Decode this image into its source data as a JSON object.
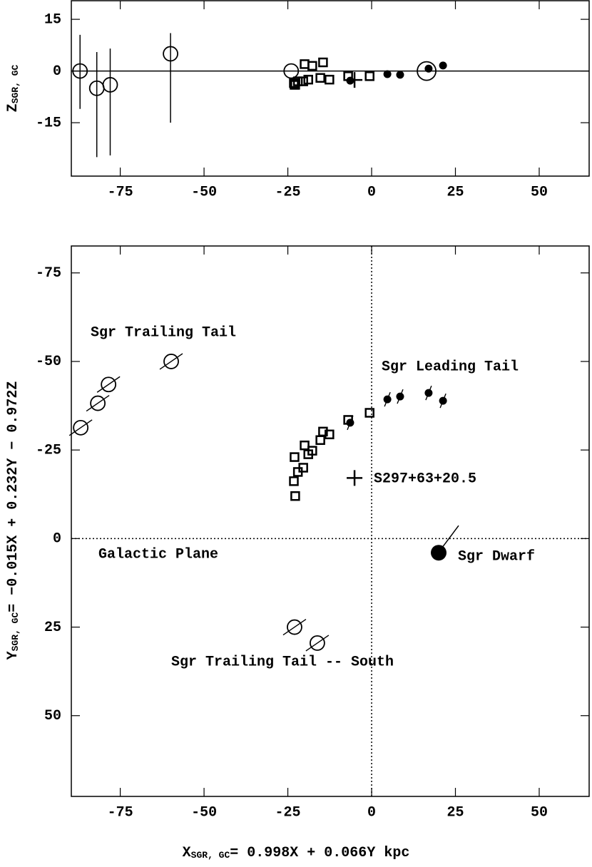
{
  "chart_data": [
    {
      "type": "scatter",
      "ylabel": {
        "main": "Z",
        "sub": "SGR, GC"
      },
      "xlim": [
        -89.6,
        64.9
      ],
      "ylim": [
        -30.5,
        20.4
      ],
      "xticks": [
        -75,
        -50,
        -25,
        0,
        25,
        50
      ],
      "yticks": [
        15,
        0,
        -15
      ],
      "zero_line": true,
      "series": [
        {
          "marker": "open-circle",
          "color": "#000000",
          "x": [
            -87,
            -82,
            -78,
            -60,
            -24
          ],
          "values": [
            0,
            -5,
            -4,
            5,
            0
          ],
          "error_low": [
            11,
            20,
            20.5,
            20,
            null
          ],
          "error_high": [
            10.5,
            10.5,
            10.5,
            6,
            null
          ]
        },
        {
          "marker": "open-square",
          "color": "#000000",
          "x": [
            -23,
            -23.2,
            -22.8,
            -22,
            -20.4,
            -20,
            -18.9,
            -17.7,
            -15.3,
            -14.5,
            -12.6,
            -7,
            -0.6
          ],
          "values": [
            -4,
            -3.5,
            -4,
            -3,
            -3,
            2,
            -2.5,
            1.5,
            -2,
            2.5,
            -2.5,
            -1.5,
            -1.5
          ]
        },
        {
          "marker": "filled-circle",
          "color": "#000000",
          "x": [
            -6.4,
            4.7,
            8.5,
            17,
            21.3
          ],
          "values": [
            -2.8,
            -0.9,
            -1.1,
            0.7,
            1.6
          ]
        },
        {
          "marker": "cross",
          "color": "#000000",
          "x": [
            -5.1
          ],
          "values": [
            -2.6
          ]
        },
        {
          "marker": "large-open-circle",
          "color": "#000000",
          "x": [
            16.4
          ],
          "values": [
            0
          ]
        }
      ]
    },
    {
      "type": "scatter",
      "xlabel": {
        "main": "X",
        "sub": "SGR, GC",
        "rest": "= 0.998X + 0.066Y kpc"
      },
      "ylabel": {
        "main": "Y",
        "sub": "SGR, GC",
        "rest": "= −0.015X + 0.232Y − 0.972Z"
      },
      "xlim": [
        -89.6,
        64.9
      ],
      "ylim": [
        72.8,
        -82.6
      ],
      "xticks": [
        -75,
        -50,
        -25,
        0,
        25,
        50
      ],
      "yticks": [
        -75,
        -50,
        -25,
        0,
        25,
        50
      ],
      "zero_lines": true,
      "direction_lines": true,
      "annotations": [
        "Sgr Trailing Tail",
        "Sgr Leading Tail",
        "S297+63+20.5",
        "Galactic Plane",
        "Sgr Dwarf",
        "Sgr Trailing Tail -- South"
      ],
      "series": [
        {
          "marker": "open-circle",
          "color": "#000000",
          "x": [
            -86.8,
            -81.7,
            -78.5,
            -59.8,
            -23,
            -16.2
          ],
          "values": [
            -31.3,
            -38.2,
            -43.5,
            -50,
            25,
            29.5
          ]
        },
        {
          "marker": "open-square",
          "color": "#000000",
          "x": [
            -23,
            -23.2,
            -22.8,
            -22,
            -20.4,
            -20,
            -18.9,
            -17.7,
            -15.3,
            -14.5,
            -12.6,
            -7,
            -0.6
          ],
          "values": [
            -23,
            -16.2,
            -12,
            -18.8,
            -20,
            -26.3,
            -23.8,
            -24.8,
            -27.8,
            -30.2,
            -29.4,
            -33.5,
            -35.5
          ]
        },
        {
          "marker": "filled-circle",
          "color": "#000000",
          "x": [
            -6.4,
            4.7,
            8.5,
            17,
            21.3
          ],
          "values": [
            -32.7,
            -39.3,
            -40.1,
            -41.1,
            -38.9
          ]
        },
        {
          "marker": "cross",
          "color": "#000000",
          "x": [
            -5.1
          ],
          "values": [
            -17.1
          ]
        },
        {
          "marker": "large-filled-circle",
          "color": "#000000",
          "x": [
            20
          ],
          "values": [
            4
          ]
        }
      ]
    }
  ]
}
